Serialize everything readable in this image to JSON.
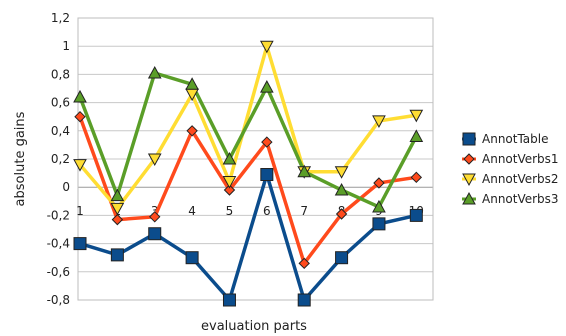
{
  "chart_data": {
    "type": "line",
    "title": "",
    "xlabel": "evaluation parts",
    "ylabel": "absolute gains",
    "x": [
      1,
      2,
      3,
      4,
      5,
      6,
      7,
      8,
      9,
      10
    ],
    "ylim": [
      -0.8,
      1.2
    ],
    "y_ticks": [
      "-0,8",
      "-0,6",
      "-0,4",
      "-0,2",
      "0",
      "0,2",
      "0,4",
      "0,6",
      "0,8",
      "1",
      "1,2"
    ],
    "grid": true,
    "legend_position": "right",
    "series": [
      {
        "name": "AnnotTable",
        "color": "#0b4c8c",
        "marker": "square",
        "values": [
          -0.4,
          -0.48,
          -0.33,
          -0.5,
          -0.8,
          0.09,
          -0.8,
          -0.5,
          -0.26,
          -0.2
        ]
      },
      {
        "name": "AnnotVerbs1",
        "color": "#ff4a1c",
        "marker": "diamond",
        "values": [
          0.5,
          -0.23,
          -0.21,
          0.4,
          -0.02,
          0.32,
          -0.54,
          -0.19,
          0.03,
          0.07
        ]
      },
      {
        "name": "AnnotVerbs2",
        "color": "#ffdd33",
        "marker": "triangle-down",
        "values": [
          0.16,
          -0.15,
          0.2,
          0.66,
          0.04,
          1.0,
          0.11,
          0.11,
          0.47,
          0.51
        ]
      },
      {
        "name": "AnnotVerbs3",
        "color": "#5a9e28",
        "marker": "triangle-up",
        "values": [
          0.64,
          -0.06,
          0.81,
          0.73,
          0.2,
          0.71,
          0.11,
          -0.02,
          -0.14,
          0.36
        ]
      }
    ]
  }
}
